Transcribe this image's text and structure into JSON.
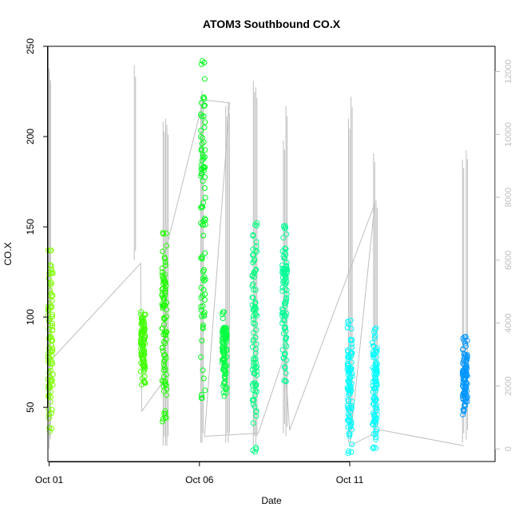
{
  "chart_data": {
    "type": "scatter",
    "title": "ATOM3 Southbound CO.X",
    "xlabel": "Date",
    "ylabel": "CO.X",
    "x_unit": "date",
    "xlim": [
      "2023-09-30T23:00",
      "2023-10-15T20:00"
    ],
    "ylim": [
      20,
      250
    ],
    "x_ticks": [
      {
        "label": "Oct 01",
        "value": "2023-10-01T00:00"
      },
      {
        "label": "Oct 06",
        "value": "2023-10-06T00:00"
      },
      {
        "label": "Oct 11",
        "value": "2023-10-11T00:00"
      }
    ],
    "y_ticks": [
      50,
      100,
      150,
      200,
      250
    ],
    "secondary_axis": {
      "side": "right",
      "color": "#bebebe",
      "ticks": [
        0,
        2000,
        4000,
        6000,
        8000,
        10000,
        12000
      ],
      "ylim": [
        -400,
        12800
      ]
    },
    "grid": false,
    "legend": "none",
    "colors": {
      "background_series": "#bebebe",
      "frame": "#000000"
    },
    "marker": "open-circle",
    "clusters": [
      {
        "center": "2023-10-01T01:00",
        "width_hours": 1.5,
        "y_min": 36,
        "y_max": 139,
        "color": "#7fff00"
      },
      {
        "center": "2023-10-04T03:00",
        "width_hours": 1.0,
        "y_min": 62,
        "y_max": 104,
        "color": "#3fff00"
      },
      {
        "center": "2023-10-04T20:00",
        "width_hours": 2.5,
        "y_min": 42,
        "y_max": 149,
        "color": "#1fff00"
      },
      {
        "center": "2023-10-06T03:00",
        "width_hours": 2.0,
        "y_min": 55,
        "y_max": 243,
        "color": "#00ff1a"
      },
      {
        "center": "2023-10-06T20:00",
        "width_hours": 2.0,
        "y_min": 56,
        "y_max": 103,
        "color": "#00ff40"
      },
      {
        "center": "2023-10-07T20:00",
        "width_hours": 2.0,
        "y_min": 25,
        "y_max": 153,
        "color": "#00ff80"
      },
      {
        "center": "2023-10-08T20:00",
        "width_hours": 2.0,
        "y_min": 62,
        "y_max": 152,
        "color": "#00ff96"
      },
      {
        "center": "2023-10-11T00:00",
        "width_hours": 1.5,
        "y_min": 23,
        "y_max": 99,
        "color": "#00ffff"
      },
      {
        "center": "2023-10-11T20:00",
        "width_hours": 2.0,
        "y_min": 27,
        "y_max": 94,
        "color": "#00ffff"
      },
      {
        "center": "2023-10-14T20:00",
        "width_hours": 2.0,
        "y_min": 46,
        "y_max": 90,
        "color": "#0096ff"
      }
    ],
    "secondary_series": {
      "name": "",
      "color": "#bebebe",
      "spikes": [
        {
          "x": "2023-10-01T00:00",
          "low": 0,
          "high": 12100
        },
        {
          "x": "2023-10-01T00:10",
          "low": 400,
          "high": 12000
        },
        {
          "x": "2023-10-03T20:00",
          "low": 6000,
          "high": 12200
        },
        {
          "x": "2023-10-04T19:00",
          "low": 100,
          "high": 10400
        },
        {
          "x": "2023-10-04T21:00",
          "low": 100,
          "high": 10500
        },
        {
          "x": "2023-10-04T22:00",
          "low": 100,
          "high": 10300
        },
        {
          "x": "2023-10-06T01:00",
          "low": 200,
          "high": 11200
        },
        {
          "x": "2023-10-06T02:00",
          "low": 200,
          "high": 11400
        },
        {
          "x": "2023-10-06T21:00",
          "low": 200,
          "high": 10900
        },
        {
          "x": "2023-10-06T23:00",
          "low": 200,
          "high": 11000
        },
        {
          "x": "2023-10-07T19:00",
          "low": 100,
          "high": 11700
        },
        {
          "x": "2023-10-07T21:00",
          "low": 100,
          "high": 11500
        },
        {
          "x": "2023-10-08T19:00",
          "low": 500,
          "high": 9800
        },
        {
          "x": "2023-10-08T21:00",
          "low": 400,
          "high": 10900
        },
        {
          "x": "2023-10-10T23:00",
          "low": 200,
          "high": 10500
        },
        {
          "x": "2023-10-11T01:00",
          "low": 300,
          "high": 11200
        },
        {
          "x": "2023-10-11T19:00",
          "low": 300,
          "high": 9400
        },
        {
          "x": "2023-10-11T21:00",
          "low": 400,
          "high": 7900
        },
        {
          "x": "2023-10-14T18:00",
          "low": 200,
          "high": 9200
        },
        {
          "x": "2023-10-14T21:00",
          "low": 300,
          "high": 9500
        }
      ],
      "connectors": [
        {
          "x": "2023-10-01T01:00",
          "y": 2800
        },
        {
          "x": "2023-10-04T01:00",
          "y": 5900
        },
        {
          "x": "2023-10-04T02:00",
          "y": 1200
        },
        {
          "x": "2023-10-04T20:00",
          "y": 2200
        },
        {
          "x": "2023-10-04T21:00",
          "y": 6300
        },
        {
          "x": "2023-10-06T03:00",
          "y": 11100
        },
        {
          "x": "2023-10-07T00:00",
          "y": 11000
        },
        {
          "x": "2023-10-06T04:00",
          "y": 400
        },
        {
          "x": "2023-10-07T23:00",
          "y": 500
        },
        {
          "x": "2023-10-08T20:00",
          "y": 3000
        },
        {
          "x": "2023-10-09T00:00",
          "y": 600
        },
        {
          "x": "2023-10-11T20:00",
          "y": 7800
        },
        {
          "x": "2023-10-11T00:00",
          "y": 100
        },
        {
          "x": "2023-10-12T01:00",
          "y": 600
        },
        {
          "x": "2023-10-14T19:00",
          "y": 100
        }
      ]
    }
  }
}
